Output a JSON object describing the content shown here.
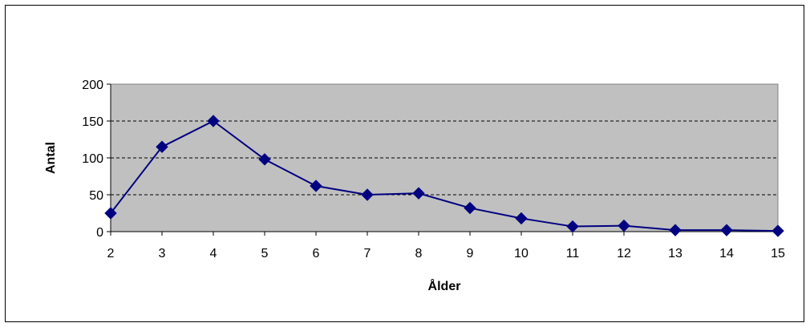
{
  "chart_data": {
    "type": "line",
    "title": "",
    "xlabel": "Ålder",
    "ylabel": "Antal",
    "x": [
      "2",
      "3",
      "4",
      "5",
      "6",
      "7",
      "8",
      "9",
      "10",
      "11",
      "12",
      "13",
      "14",
      "15"
    ],
    "series": [
      {
        "name": "",
        "values": [
          25,
          115,
          150,
          98,
          62,
          50,
          52,
          32,
          18,
          7,
          8,
          2,
          2,
          1
        ],
        "color": "#000080"
      }
    ],
    "ylim": [
      0,
      200
    ],
    "yticks": [
      "0",
      "50",
      "100",
      "150",
      "200"
    ],
    "grid": "horizontal-dashed",
    "plot_background": "#c0c0c0",
    "legend": "none"
  }
}
